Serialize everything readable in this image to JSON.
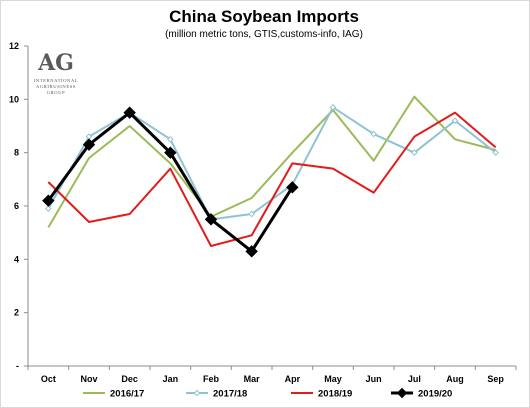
{
  "chart_data": {
    "type": "line",
    "title": "China Soybean Imports",
    "subtitle": "(million metric tons, GTIS,customs-info, IAG)",
    "xlabel": "",
    "ylabel": "",
    "categories": [
      "Oct",
      "Nov",
      "Dec",
      "Jan",
      "Feb",
      "Mar",
      "Apr",
      "May",
      "Jun",
      "Jul",
      "Aug",
      "Sep"
    ],
    "ylim": [
      0,
      12
    ],
    "yticks": [
      0,
      2,
      4,
      6,
      8,
      10,
      12
    ],
    "ytick_labels": [
      "-",
      "2",
      "4",
      "6",
      "8",
      "10",
      "12"
    ],
    "grid": false,
    "legend_position": "bottom",
    "series": [
      {
        "name": "2016/17",
        "color": "#9bbb59",
        "marker": "none",
        "values": [
          5.2,
          7.8,
          9.0,
          7.6,
          5.6,
          6.3,
          8.0,
          9.6,
          7.7,
          10.1,
          8.5,
          8.1
        ]
      },
      {
        "name": "2017/18",
        "color": "#8ec3d3",
        "marker": "diamond-small",
        "values": [
          5.9,
          8.6,
          9.5,
          8.5,
          5.5,
          5.7,
          6.8,
          9.7,
          8.7,
          8.0,
          9.2,
          8.0
        ]
      },
      {
        "name": "2018/19",
        "color": "#e31b1b",
        "marker": "none",
        "values": [
          6.9,
          5.4,
          5.7,
          7.4,
          4.5,
          4.9,
          7.6,
          7.4,
          6.5,
          8.6,
          9.5,
          8.2
        ]
      },
      {
        "name": "2019/20",
        "color": "#000000",
        "marker": "diamond",
        "values": [
          6.2,
          8.3,
          9.5,
          8.0,
          5.5,
          4.3,
          6.7,
          null,
          null,
          null,
          null,
          null
        ]
      }
    ]
  },
  "logo": {
    "monogram": "AG",
    "line1": "INTERNATIONAL",
    "line2": "AGRIBUSINESS",
    "line3": "GROUP"
  }
}
